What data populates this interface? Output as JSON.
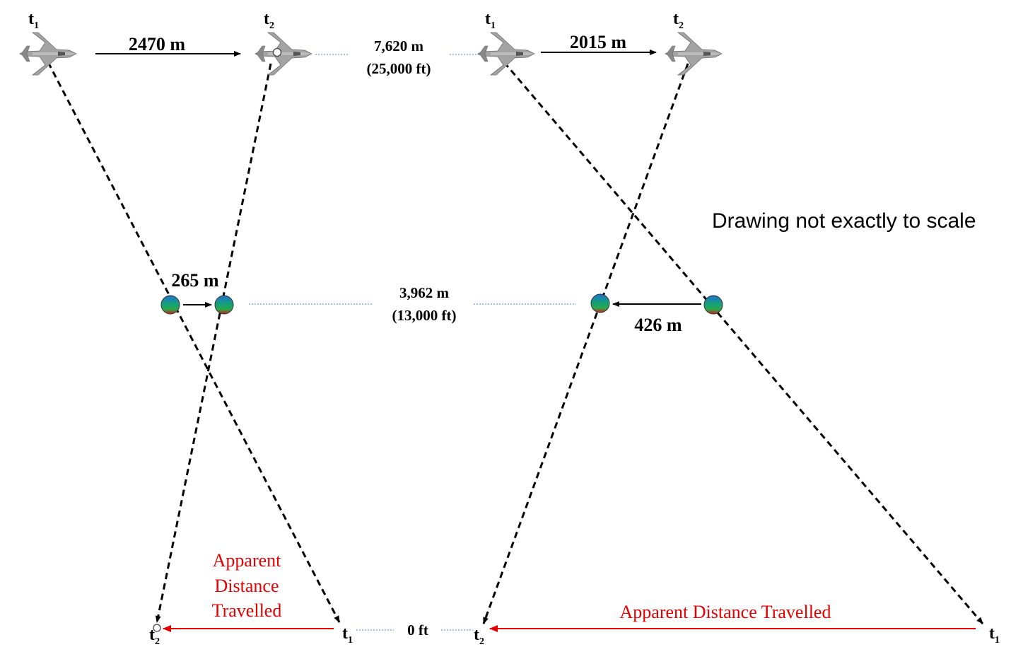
{
  "labels": {
    "time_first": "t",
    "time_second": "t",
    "sub_first": "1",
    "sub_second": "2"
  },
  "left_scenario": {
    "aircraft_distance": "2470 m",
    "object_distance": "265 m",
    "apparent_label_line1": "Apparent",
    "apparent_label_line2": "Distance",
    "apparent_label_line3": "Travelled"
  },
  "right_scenario": {
    "aircraft_distance": "2015 m",
    "object_distance": "426 m",
    "apparent_label": "Apparent Distance Travelled"
  },
  "altitudes": {
    "aircraft_m": "7,620 m",
    "aircraft_ft": "(25,000 ft)",
    "object_m": "3,962 m",
    "object_ft": "(13,000 ft)",
    "ground": "0 ft"
  },
  "note": "Drawing not exactly to scale",
  "colors": {
    "line": "#000000",
    "apparent_arrow": "#e60000",
    "level_guide": "#4a7fd0",
    "aircraft": "#9a9a9a"
  }
}
